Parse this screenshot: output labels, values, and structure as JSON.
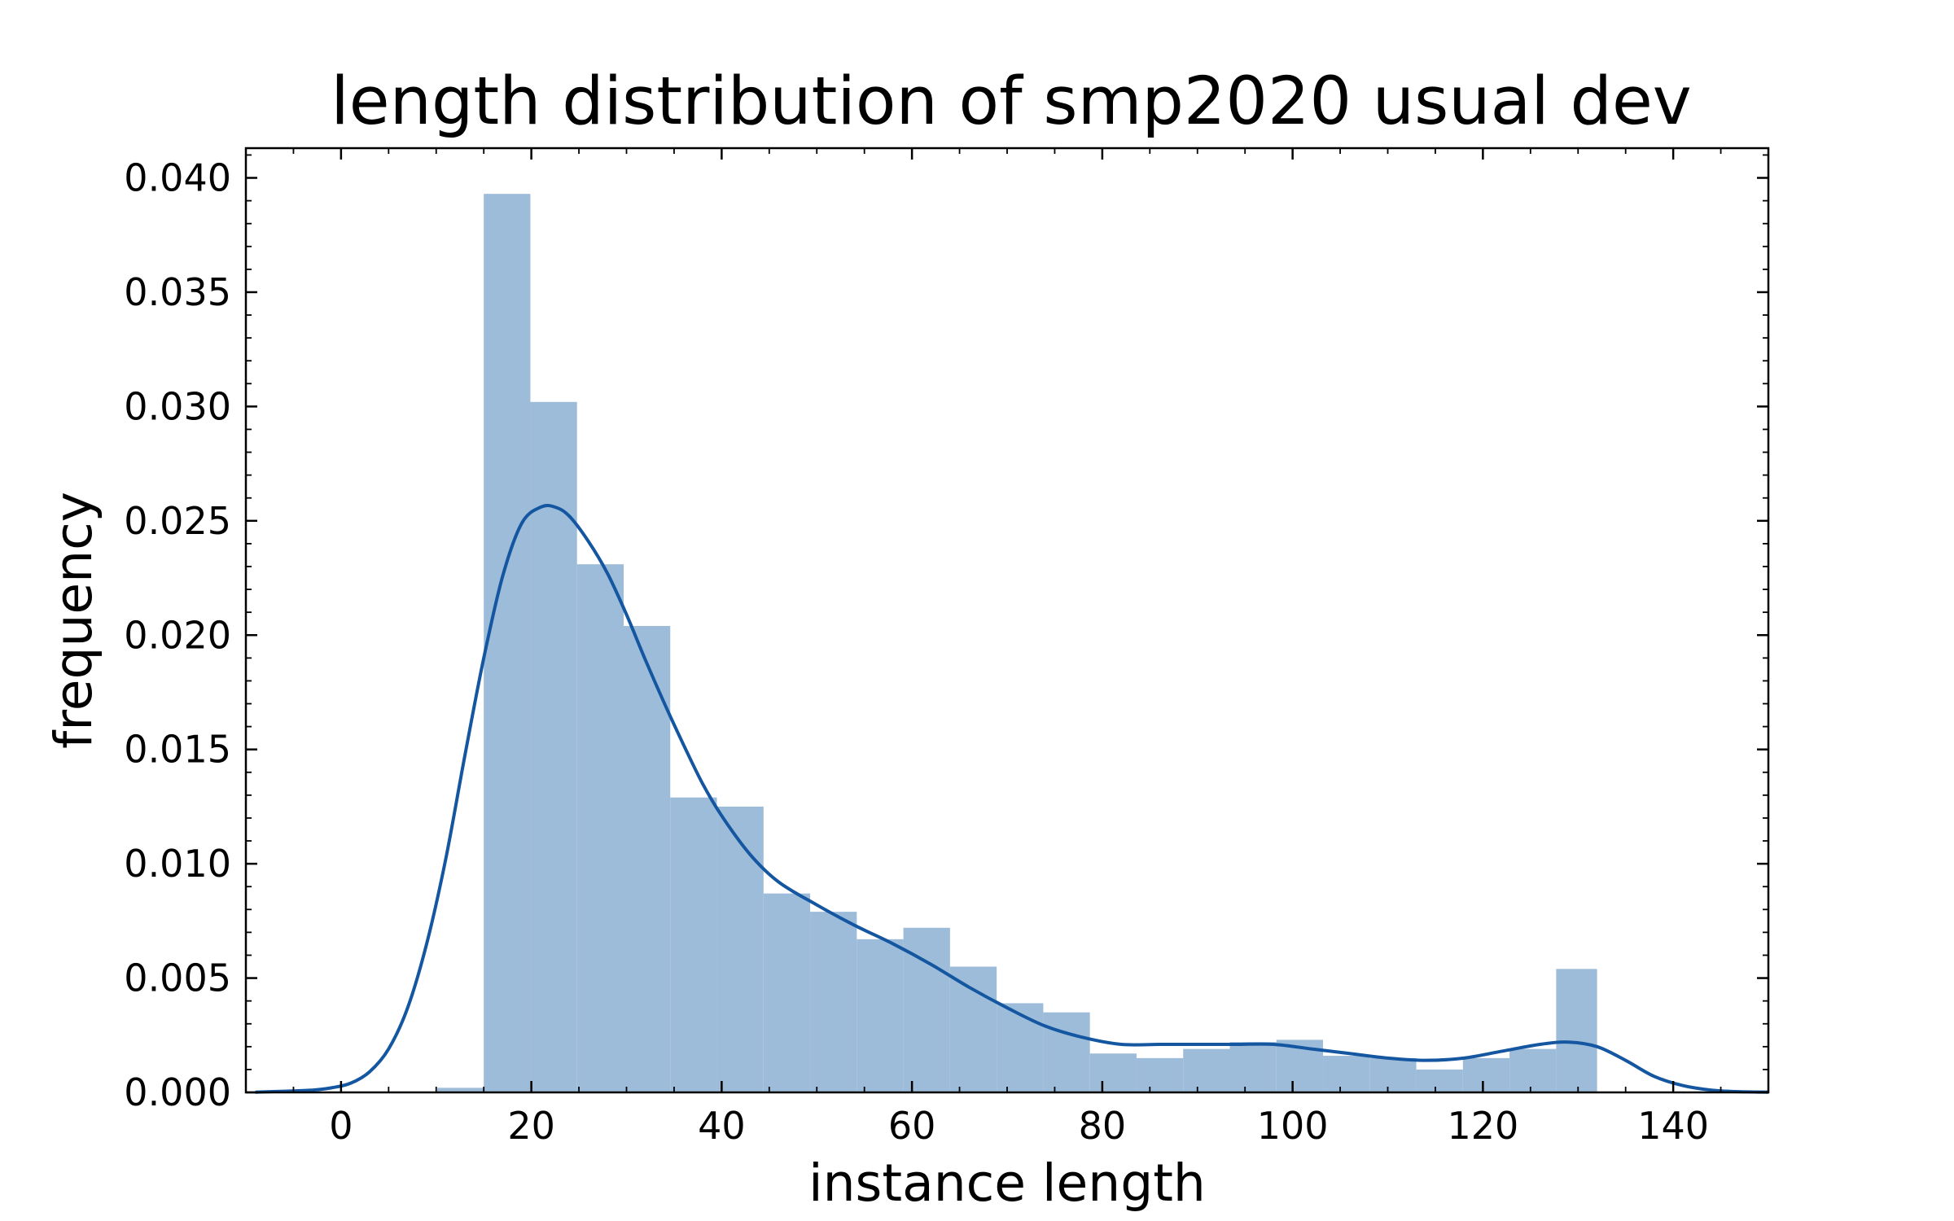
{
  "chart_data": {
    "type": "bar",
    "title": "length distribution of smp2020 usual dev",
    "xlabel": "instance length",
    "ylabel": "frequency",
    "xlim": [
      -10,
      150
    ],
    "ylim": [
      0,
      0.0413
    ],
    "xticks": [
      0,
      20,
      40,
      60,
      80,
      100,
      120,
      140
    ],
    "yticks": [
      0.0,
      0.005,
      0.01,
      0.015,
      0.02,
      0.025,
      0.03,
      0.035,
      0.04
    ],
    "xtick_labels": [
      "0",
      "20",
      "40",
      "60",
      "80",
      "100",
      "120",
      "140"
    ],
    "ytick_labels": [
      "0.000",
      "0.005",
      "0.010",
      "0.015",
      "0.020",
      "0.025",
      "0.030",
      "0.035",
      "0.040"
    ],
    "grid": false,
    "bar_color": "#9dbcda",
    "line_color": "#1456a0",
    "histogram": {
      "bin_edges": [
        10.1,
        15.0,
        19.9,
        24.8,
        29.7,
        34.6,
        39.5,
        44.4,
        49.3,
        54.2,
        59.1,
        64.0,
        68.9,
        73.8,
        78.7,
        83.6,
        88.5,
        93.4,
        98.3,
        103.2,
        108.1,
        113.0,
        117.9,
        122.8,
        127.7,
        132.0
      ],
      "values": [
        0.0002,
        0.0393,
        0.0302,
        0.0231,
        0.0204,
        0.0129,
        0.0125,
        0.0087,
        0.0079,
        0.0067,
        0.0072,
        0.0055,
        0.0039,
        0.0035,
        0.0017,
        0.0015,
        0.0019,
        0.0022,
        0.0023,
        0.0016,
        0.0015,
        0.001,
        0.0015,
        0.0019,
        0.0054
      ]
    },
    "kde": {
      "x": [
        -9,
        -6,
        -3,
        -1,
        1,
        3,
        5,
        7,
        9,
        11,
        13,
        15,
        17,
        19,
        21,
        22.5,
        24,
        26,
        28,
        30,
        32,
        34,
        36,
        38,
        40,
        43,
        46,
        50,
        54,
        58,
        62,
        66,
        70,
        74,
        78,
        82,
        86,
        90,
        94,
        98,
        102,
        106,
        110,
        114,
        118,
        122,
        126,
        129,
        132,
        135,
        138,
        141,
        144,
        147,
        150
      ],
      "y": [
        1e-05,
        5e-05,
        0.0001,
        0.0002,
        0.0004,
        0.0009,
        0.0019,
        0.0037,
        0.0065,
        0.0102,
        0.0147,
        0.019,
        0.0226,
        0.0249,
        0.0256,
        0.0256,
        0.0252,
        0.0241,
        0.0227,
        0.0209,
        0.0189,
        0.017,
        0.0152,
        0.0135,
        0.0121,
        0.0104,
        0.0092,
        0.0082,
        0.0073,
        0.0065,
        0.0056,
        0.0046,
        0.0037,
        0.0029,
        0.0024,
        0.0021,
        0.0021,
        0.0021,
        0.0021,
        0.0021,
        0.0019,
        0.0017,
        0.0015,
        0.0014,
        0.0015,
        0.0018,
        0.0021,
        0.0022,
        0.002,
        0.0014,
        0.0007,
        0.0003,
        0.0001,
        3e-05,
        1e-05
      ]
    }
  }
}
